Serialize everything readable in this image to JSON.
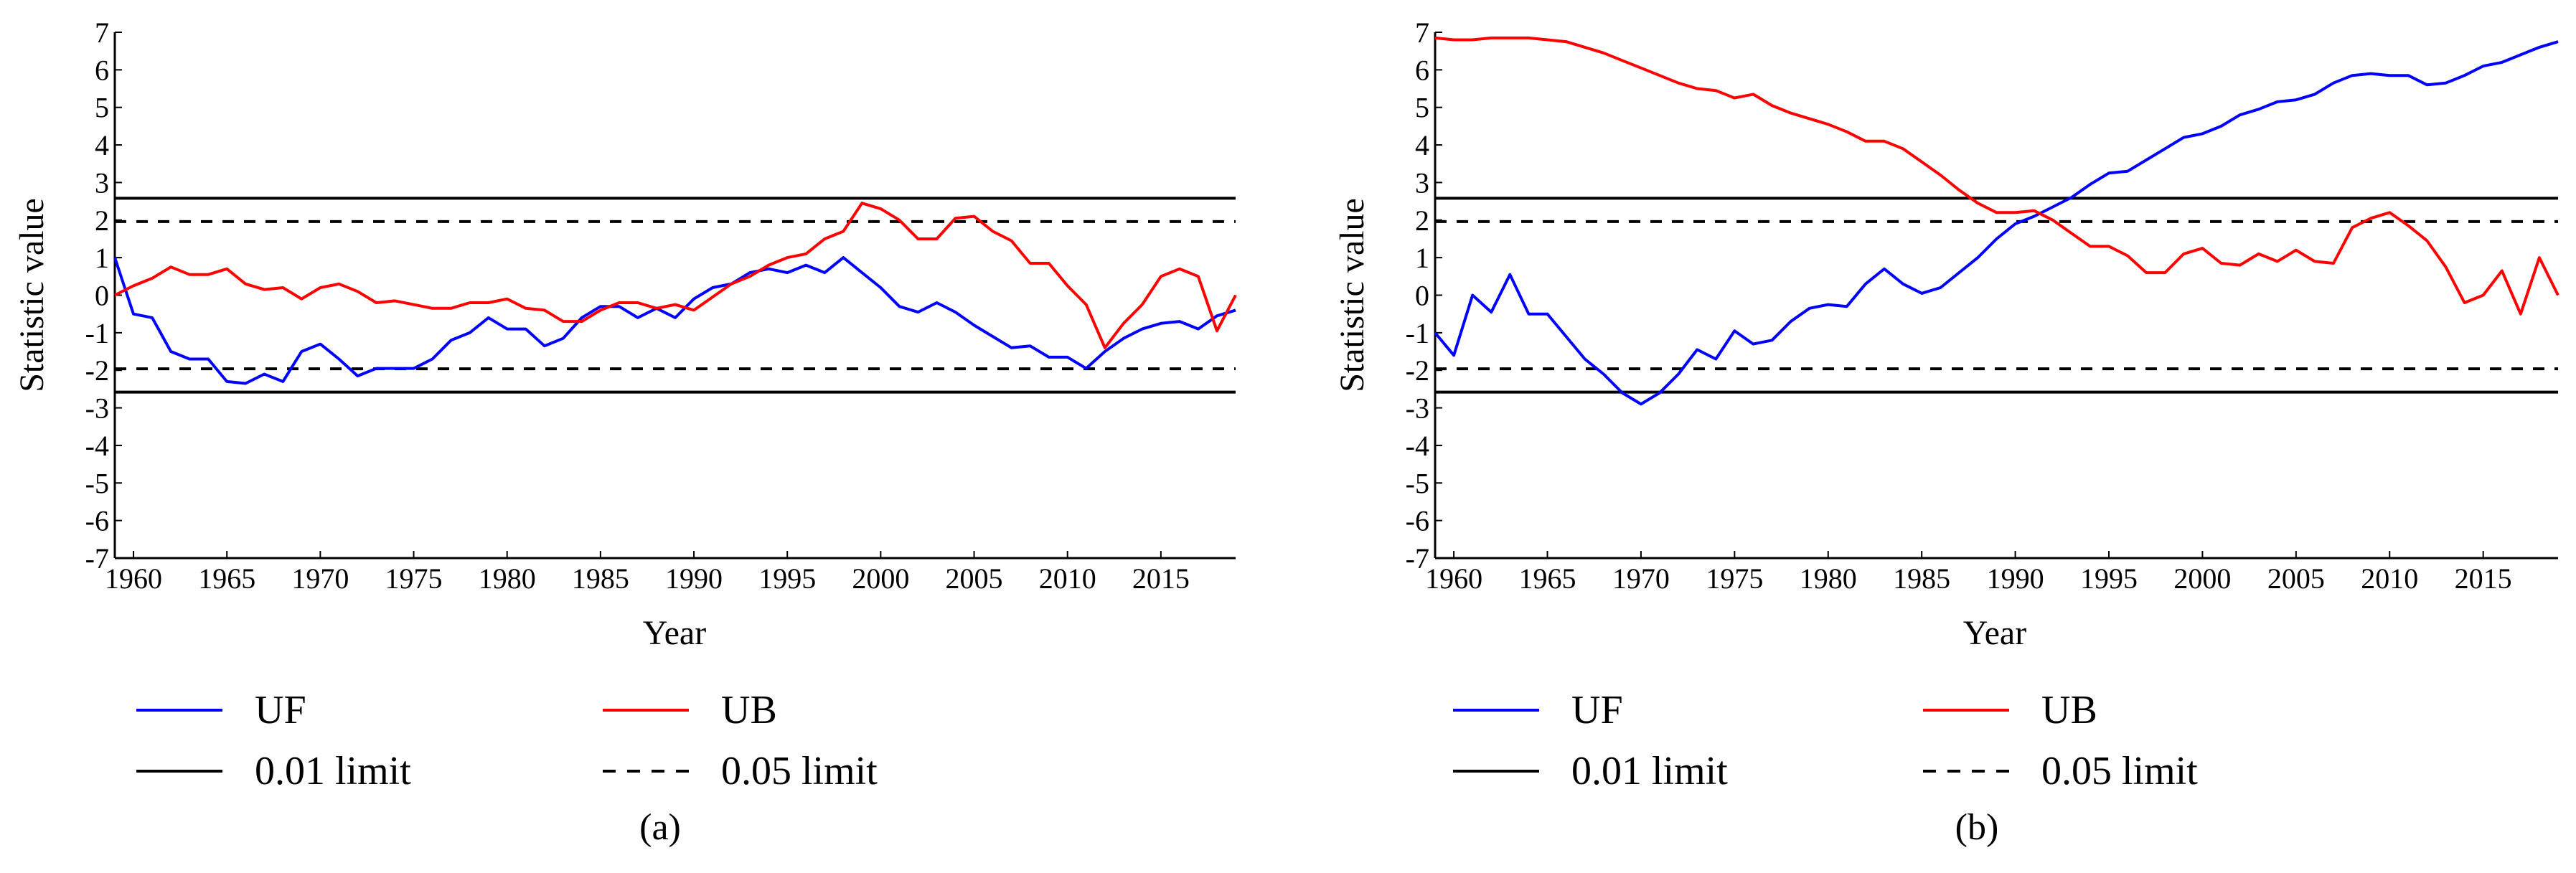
{
  "chart_data": [
    {
      "type": "line",
      "caption": "(a)",
      "xlabel": "Year",
      "ylabel": "Statistic value",
      "xlim": [
        1959,
        2019
      ],
      "ylim": [
        -7,
        7
      ],
      "xticks": [
        1960,
        1965,
        1970,
        1975,
        1980,
        1985,
        1990,
        1995,
        2000,
        2005,
        2010,
        2015
      ],
      "yticks": [
        -7,
        -6,
        -5,
        -4,
        -3,
        -2,
        -1,
        0,
        1,
        2,
        3,
        4,
        5,
        6,
        7
      ],
      "grid": false,
      "legend_position": "bottom",
      "reference_lines": [
        {
          "name": "0.01 limit",
          "style": "solid",
          "color": "#000000",
          "values": [
            2.58,
            -2.58
          ]
        },
        {
          "name": "0.05 limit",
          "style": "dashed",
          "color": "#000000",
          "values": [
            1.96,
            -1.96
          ]
        }
      ],
      "series": [
        {
          "name": "UF",
          "color": "#0000ff",
          "x": [
            1959,
            1960,
            1961,
            1962,
            1963,
            1964,
            1965,
            1966,
            1967,
            1968,
            1969,
            1970,
            1971,
            1972,
            1973,
            1974,
            1975,
            1976,
            1977,
            1978,
            1979,
            1980,
            1981,
            1982,
            1983,
            1984,
            1985,
            1986,
            1987,
            1988,
            1989,
            1990,
            1991,
            1992,
            1993,
            1994,
            1995,
            1996,
            1997,
            1998,
            1999,
            2000,
            2001,
            2002,
            2003,
            2004,
            2005,
            2006,
            2007,
            2008,
            2009,
            2010,
            2011,
            2012,
            2013,
            2014,
            2015,
            2016,
            2017,
            2018,
            2019
          ],
          "values": [
            1.0,
            -0.5,
            -0.6,
            -1.5,
            -1.7,
            -1.7,
            -2.3,
            -2.35,
            -2.1,
            -2.3,
            -1.5,
            -1.3,
            -1.7,
            -2.15,
            -1.95,
            -1.95,
            -1.95,
            -1.7,
            -1.2,
            -1.0,
            -0.6,
            -0.9,
            -0.9,
            -1.35,
            -1.15,
            -0.6,
            -0.3,
            -0.3,
            -0.6,
            -0.35,
            -0.6,
            -0.1,
            0.2,
            0.3,
            0.6,
            0.7,
            0.6,
            0.8,
            0.6,
            1.0,
            0.6,
            0.2,
            -0.3,
            -0.45,
            -0.2,
            -0.45,
            -0.8,
            -1.1,
            -1.4,
            -1.35,
            -1.65,
            -1.65,
            -1.95,
            -1.5,
            -1.15,
            -0.9,
            -0.75,
            -0.7,
            -0.9,
            -0.55,
            -0.4
          ]
        },
        {
          "name": "UB",
          "color": "#ff0000",
          "x": [
            1959,
            1960,
            1961,
            1962,
            1963,
            1964,
            1965,
            1966,
            1967,
            1968,
            1969,
            1970,
            1971,
            1972,
            1973,
            1974,
            1975,
            1976,
            1977,
            1978,
            1979,
            1980,
            1981,
            1982,
            1983,
            1984,
            1985,
            1986,
            1987,
            1988,
            1989,
            1990,
            1991,
            1992,
            1993,
            1994,
            1995,
            1996,
            1997,
            1998,
            1999,
            2000,
            2001,
            2002,
            2003,
            2004,
            2005,
            2006,
            2007,
            2008,
            2009,
            2010,
            2011,
            2012,
            2013,
            2014,
            2015,
            2016,
            2017,
            2018,
            2019
          ],
          "values": [
            0.0,
            0.25,
            0.45,
            0.75,
            0.55,
            0.55,
            0.7,
            0.3,
            0.15,
            0.2,
            -0.1,
            0.2,
            0.3,
            0.1,
            -0.2,
            -0.15,
            -0.25,
            -0.35,
            -0.35,
            -0.2,
            -0.2,
            -0.1,
            -0.35,
            -0.4,
            -0.7,
            -0.7,
            -0.4,
            -0.2,
            -0.2,
            -0.35,
            -0.25,
            -0.4,
            -0.05,
            0.3,
            0.5,
            0.8,
            1.0,
            1.1,
            1.5,
            1.7,
            2.45,
            2.3,
            2.0,
            1.5,
            1.5,
            2.05,
            2.1,
            1.7,
            1.45,
            0.85,
            0.85,
            0.25,
            -0.25,
            -1.4,
            -0.75,
            -0.25,
            0.5,
            0.7,
            0.5,
            -0.95,
            0.0
          ]
        }
      ]
    },
    {
      "type": "line",
      "caption": "(b)",
      "xlabel": "Year",
      "ylabel": "Statistic value",
      "xlim": [
        1959,
        2019
      ],
      "ylim": [
        -7,
        7
      ],
      "xticks": [
        1960,
        1965,
        1970,
        1975,
        1980,
        1985,
        1990,
        1995,
        2000,
        2005,
        2010,
        2015
      ],
      "yticks": [
        -7,
        -6,
        -5,
        -4,
        -3,
        -2,
        -1,
        0,
        1,
        2,
        3,
        4,
        5,
        6,
        7
      ],
      "grid": false,
      "legend_position": "bottom",
      "reference_lines": [
        {
          "name": "0.01 limit",
          "style": "solid",
          "color": "#000000",
          "values": [
            2.58,
            -2.58
          ]
        },
        {
          "name": "0.05 limit",
          "style": "dashed",
          "color": "#000000",
          "values": [
            1.96,
            -1.96
          ]
        }
      ],
      "series": [
        {
          "name": "UF",
          "color": "#0000ff",
          "x": [
            1959,
            1960,
            1961,
            1962,
            1963,
            1964,
            1965,
            1966,
            1967,
            1968,
            1969,
            1970,
            1971,
            1972,
            1973,
            1974,
            1975,
            1976,
            1977,
            1978,
            1979,
            1980,
            1981,
            1982,
            1983,
            1984,
            1985,
            1986,
            1987,
            1988,
            1989,
            1990,
            1991,
            1992,
            1993,
            1994,
            1995,
            1996,
            1997,
            1998,
            1999,
            2000,
            2001,
            2002,
            2003,
            2004,
            2005,
            2006,
            2007,
            2008,
            2009,
            2010,
            2011,
            2012,
            2013,
            2014,
            2015,
            2016,
            2017,
            2018,
            2019
          ],
          "values": [
            -1.0,
            -1.6,
            0.0,
            -0.45,
            0.55,
            -0.5,
            -0.5,
            -1.1,
            -1.7,
            -2.1,
            -2.6,
            -2.9,
            -2.6,
            -2.1,
            -1.45,
            -1.7,
            -0.95,
            -1.3,
            -1.2,
            -0.7,
            -0.35,
            -0.25,
            -0.3,
            0.3,
            0.7,
            0.3,
            0.05,
            0.2,
            0.6,
            1.0,
            1.5,
            1.9,
            2.1,
            2.35,
            2.6,
            2.95,
            3.25,
            3.3,
            3.6,
            3.9,
            4.2,
            4.3,
            4.5,
            4.8,
            4.95,
            5.15,
            5.2,
            5.35,
            5.65,
            5.85,
            5.9,
            5.85,
            5.85,
            5.6,
            5.65,
            5.85,
            6.1,
            6.2,
            6.4,
            6.6,
            6.75
          ]
        },
        {
          "name": "UB",
          "color": "#ff0000",
          "x": [
            1959,
            1960,
            1961,
            1962,
            1963,
            1964,
            1965,
            1966,
            1967,
            1968,
            1969,
            1970,
            1971,
            1972,
            1973,
            1974,
            1975,
            1976,
            1977,
            1978,
            1979,
            1980,
            1981,
            1982,
            1983,
            1984,
            1985,
            1986,
            1987,
            1988,
            1989,
            1990,
            1991,
            1992,
            1993,
            1994,
            1995,
            1996,
            1997,
            1998,
            1999,
            2000,
            2001,
            2002,
            2003,
            2004,
            2005,
            2006,
            2007,
            2008,
            2009,
            2010,
            2011,
            2012,
            2013,
            2014,
            2015,
            2016,
            2017,
            2018,
            2019
          ],
          "values": [
            6.85,
            6.8,
            6.8,
            6.85,
            6.85,
            6.85,
            6.8,
            6.75,
            6.6,
            6.45,
            6.25,
            6.05,
            5.85,
            5.65,
            5.5,
            5.45,
            5.25,
            5.35,
            5.05,
            4.85,
            4.7,
            4.55,
            4.35,
            4.1,
            4.1,
            3.9,
            3.55,
            3.2,
            2.8,
            2.45,
            2.2,
            2.2,
            2.25,
            2.0,
            1.65,
            1.3,
            1.3,
            1.05,
            0.6,
            0.6,
            1.1,
            1.25,
            0.85,
            0.8,
            1.1,
            0.9,
            1.2,
            0.9,
            0.85,
            1.8,
            2.05,
            2.2,
            1.85,
            1.45,
            0.75,
            -0.2,
            0.0,
            0.65,
            -0.5,
            1.0,
            0.0
          ]
        }
      ]
    }
  ]
}
